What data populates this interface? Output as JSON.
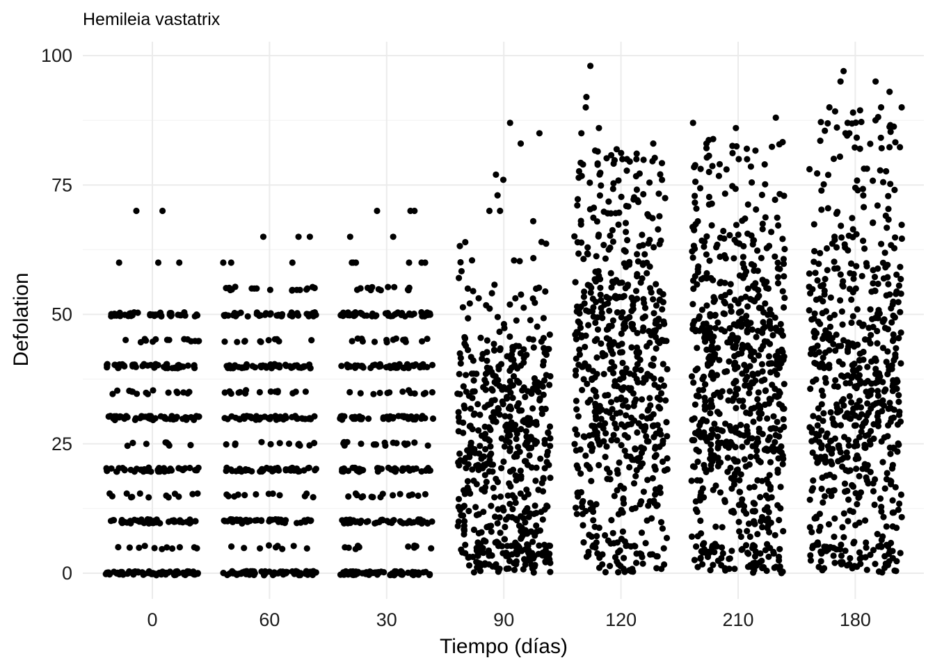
{
  "chart_data": {
    "type": "scatter",
    "title": "Hemileia vastatrix",
    "xlabel": "Tiempo (días)",
    "ylabel": "Defolation",
    "categories": [
      "0",
      "60",
      "30",
      "90",
      "120",
      "210",
      "180"
    ],
    "yticks": [
      "0",
      "25",
      "50",
      "75",
      "100"
    ],
    "ylim": [
      -5,
      103
    ],
    "jitter": true,
    "point_color": "#000000",
    "grid": true,
    "legend": "none",
    "groups": [
      {
        "category": "0",
        "n": 380,
        "discrete_values": [
          0,
          5,
          10,
          15,
          20,
          25,
          30,
          35,
          40,
          45,
          50
        ],
        "outliers": [
          60,
          60,
          60,
          70,
          70
        ]
      },
      {
        "category": "60",
        "n": 380,
        "discrete_values": [
          0,
          5,
          10,
          15,
          20,
          25,
          30,
          35,
          40,
          45,
          50,
          55
        ],
        "outliers": [
          60,
          60,
          60,
          65,
          65,
          65,
          55,
          55,
          55
        ]
      },
      {
        "category": "30",
        "n": 380,
        "discrete_values": [
          0,
          5,
          10,
          15,
          20,
          25,
          30,
          35,
          40,
          45,
          50,
          55
        ],
        "outliers": [
          60,
          60,
          60,
          60,
          60,
          60,
          65,
          65,
          70,
          70,
          70
        ]
      },
      {
        "category": "90",
        "n": 560,
        "range": [
          0,
          66
        ],
        "center": 24,
        "outliers": [
          70,
          73,
          77,
          85,
          87,
          83,
          76,
          70,
          68,
          64
        ]
      },
      {
        "category": "120",
        "n": 620,
        "range": [
          0,
          82
        ],
        "center": 38,
        "outliers": [
          98,
          92,
          90,
          86,
          85,
          83,
          80,
          80,
          80
        ]
      },
      {
        "category": "210",
        "n": 720,
        "range": [
          0,
          84
        ],
        "center": 36,
        "outliers": [
          88,
          87,
          86,
          83,
          82,
          80,
          79,
          78
        ]
      },
      {
        "category": "180",
        "n": 640,
        "range": [
          0,
          90
        ],
        "center": 36,
        "outliers": [
          97,
          95,
          95,
          93,
          90,
          90,
          89,
          87,
          85,
          85
        ]
      }
    ]
  }
}
